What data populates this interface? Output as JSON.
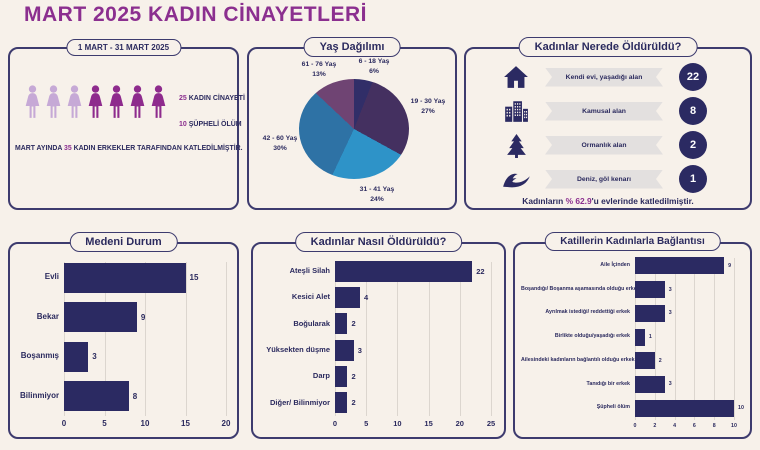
{
  "title": "MART 2025 KADIN CİNAYETLERİ",
  "colors": {
    "background": "#f7f1ea",
    "accent_purple": "#8b2f8f",
    "navy_text": "#2b2a5e",
    "bar_fill": "#2b2a62",
    "panel_border": "#3d3b6e",
    "banner_gray": "#e3e0df",
    "circle_navy": "#2b2a62",
    "figure_light": "#c6a9d6",
    "figure_dark": "#8e2b8d"
  },
  "summary_panel": {
    "date_badge": "1 MART - 31 MART 2025",
    "figures": {
      "light_count": 3,
      "dark_count": 4
    },
    "stats": [
      {
        "value": "25",
        "label": "KADIN CİNAYETİ"
      },
      {
        "value": "10",
        "label": "ŞÜPHELİ ÖLÜM"
      }
    ],
    "note": {
      "prefix": "MART AYINDA ",
      "highlight": "35",
      "suffix": " KADIN ERKEKLER TARAFINDAN KATLEDİLMİŞTİR."
    }
  },
  "age_panel": {
    "title": "Yaş Dağılımı"
  },
  "location_panel": {
    "title": "Kadınlar Nerede Öldürüldü?",
    "rows": [
      {
        "icon": "house-icon",
        "label": "Kendi evi, yaşadığı alan",
        "value": "22"
      },
      {
        "icon": "buildings-icon",
        "label": "Kamusal alan",
        "value": "8"
      },
      {
        "icon": "pine-tree-icon",
        "label": "Ormanlık alan",
        "value": "2"
      },
      {
        "icon": "wave-icon",
        "label": "Deniz, göl kenarı",
        "value": "1"
      }
    ],
    "footnote": {
      "prefix": "Kadınların ",
      "highlight": "% 62.9",
      "suffix": "'u evlerinde katledilmiştir."
    }
  },
  "marital_panel": {
    "title": "Medeni Durum"
  },
  "method_panel": {
    "title": "Kadınlar Nasıl Öldürüldü?"
  },
  "killer_panel": {
    "title": "Katillerin Kadınlarla Bağlantısı"
  },
  "chart_data": [
    {
      "id": "age",
      "type": "pie",
      "title": "Yaş Dağılımı",
      "start_angle_deg": 0,
      "direction": "clockwise",
      "slices": [
        {
          "label": "6 - 18 Yaş",
          "pct": 6,
          "pct_label": "6%",
          "color": "#312e68"
        },
        {
          "label": "19 - 30 Yaş",
          "pct": 27,
          "pct_label": "27%",
          "color": "#443060"
        },
        {
          "label": "31 - 41 Yaş",
          "pct": 24,
          "pct_label": "24%",
          "color": "#2e93c8"
        },
        {
          "label": "42 - 60 Yaş",
          "pct": 30,
          "pct_label": "30%",
          "color": "#2e72a5"
        },
        {
          "label": "61 - 76 Yaş",
          "pct": 13,
          "pct_label": "13%",
          "color": "#6f4473"
        }
      ]
    },
    {
      "id": "marital",
      "type": "bar",
      "title": "Medeni Durum",
      "orientation": "horizontal",
      "categories": [
        "Evli",
        "Bekar",
        "Boşanmış",
        "Bilinmiyor"
      ],
      "values": [
        15,
        9,
        3,
        8
      ],
      "xticks": [
        0,
        5,
        10,
        15,
        20
      ],
      "xlim": [
        0,
        20
      ]
    },
    {
      "id": "method",
      "type": "bar",
      "title": "Kadınlar Nasıl Öldürüldü?",
      "orientation": "horizontal",
      "categories": [
        "Ateşli Silah",
        "Kesici Alet",
        "Boğularak",
        "Yüksekten düşme",
        "Darp",
        "Diğer/ Bilinmiyor"
      ],
      "values": [
        22,
        4,
        2,
        3,
        2,
        2
      ],
      "xticks": [
        0,
        5,
        10,
        15,
        20,
        25
      ],
      "xlim": [
        0,
        25
      ]
    },
    {
      "id": "killer",
      "type": "bar",
      "title": "Katillerin Kadınlarla Bağlantısı",
      "orientation": "horizontal",
      "categories": [
        "Aile İçinden",
        "Boşandığı/ Boşanma aşamasında olduğu erkek",
        "Ayrılmak istediği/ reddettiği erkek",
        "Birlikte olduğu/yaşadığı erkek",
        "Ailesindeki kadınların bağlantılı olduğu erkek",
        "Tanıdığı bir erkek",
        "Şüpheli ölüm"
      ],
      "values": [
        9,
        3,
        3,
        1,
        2,
        3,
        10
      ],
      "xticks": [
        0,
        2,
        4,
        6,
        8,
        10
      ],
      "xlim": [
        0,
        10
      ]
    }
  ]
}
